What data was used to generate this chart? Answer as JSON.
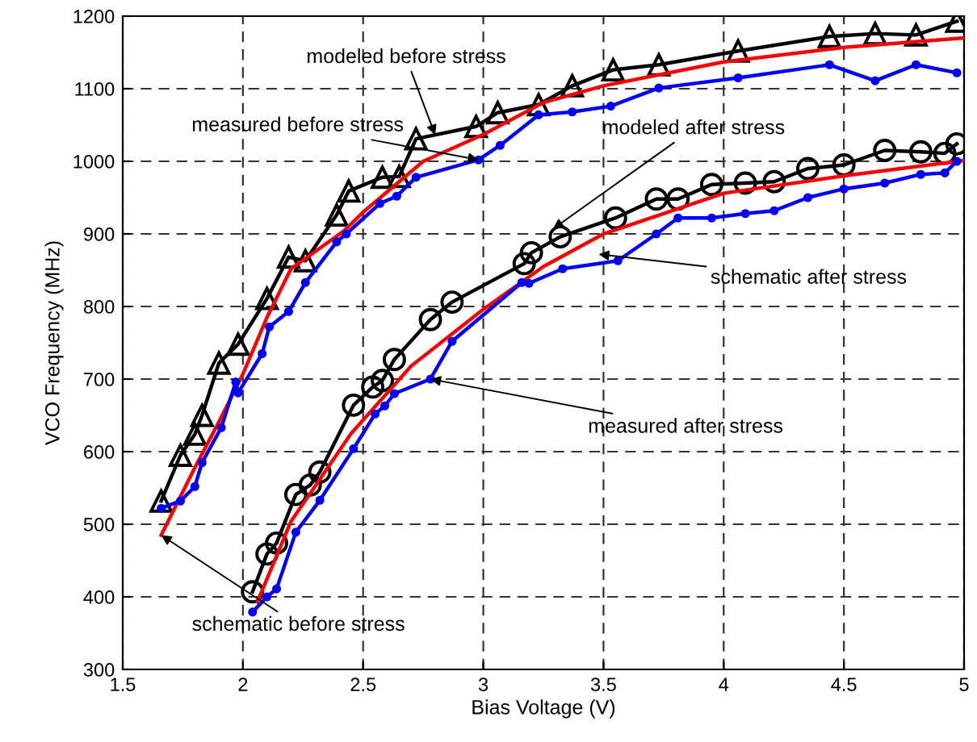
{
  "chart_data": {
    "type": "line",
    "xlabel": "Bias Voltage (V)",
    "ylabel": "VCO Frequency (MHz)",
    "xlim": [
      1.5,
      5
    ],
    "xticks": [
      1.5,
      2,
      2.5,
      3,
      3.5,
      4,
      4.5,
      5
    ],
    "ylim": [
      300,
      1200
    ],
    "yticks": [
      300,
      400,
      500,
      600,
      700,
      800,
      900,
      1000,
      1100,
      1200
    ],
    "grid": true,
    "series": [
      {
        "color": "#000000",
        "marker": "triangle",
        "x": [
          1.66,
          1.74,
          1.8,
          1.83,
          1.9,
          1.98,
          2.1,
          2.19,
          2.26,
          2.39,
          2.44,
          2.58,
          2.65,
          2.72,
          2.97,
          3.06,
          3.23,
          3.37,
          3.54,
          3.73,
          4.06,
          4.44,
          4.63,
          4.8,
          4.97
        ],
        "values": [
          532,
          595,
          624,
          650,
          722,
          748,
          811,
          868,
          863,
          926,
          959,
          978,
          979,
          1031,
          1048,
          1067,
          1078,
          1104,
          1126,
          1133,
          1152,
          1172,
          1176,
          1174,
          1193
        ]
      },
      {
        "color": "#ff0000",
        "marker": "none",
        "x": [
          1.66,
          1.8,
          1.9,
          2.0,
          2.1,
          2.2,
          2.42,
          2.5,
          2.75,
          3.0,
          3.25,
          3.5,
          4.0,
          4.5,
          5.0
        ],
        "values": [
          485,
          578,
          641,
          707,
          785,
          852,
          904,
          930,
          1000,
          1037,
          1081,
          1104,
          1137,
          1157,
          1170
        ]
      },
      {
        "color": "#0000ff",
        "marker": "circle",
        "x": [
          1.66,
          1.74,
          1.8,
          1.83,
          1.91,
          1.97,
          1.98,
          2.08,
          2.11,
          2.19,
          2.26,
          2.39,
          2.43,
          2.57,
          2.64,
          2.72,
          2.98,
          3.07,
          3.23,
          3.37,
          3.53,
          3.73,
          4.06,
          4.44,
          4.63,
          4.8,
          4.97
        ],
        "values": [
          522,
          532,
          552,
          585,
          633,
          696,
          681,
          735,
          772,
          793,
          833,
          889,
          900,
          942,
          952,
          978,
          1002,
          1022,
          1064,
          1068,
          1076,
          1101,
          1115,
          1133,
          1111,
          1133,
          1122
        ]
      },
      {
        "color": "#000000",
        "marker": "circle",
        "x": [
          2.04,
          2.1,
          2.14,
          2.22,
          2.28,
          2.32,
          2.46,
          2.54,
          2.58,
          2.63,
          2.78,
          2.87,
          3.17,
          3.2,
          3.32,
          3.55,
          3.72,
          3.81,
          3.95,
          4.09,
          4.21,
          4.35,
          4.5,
          4.67,
          4.82,
          4.92,
          4.97
        ],
        "values": [
          407,
          459,
          474,
          541,
          554,
          572,
          664,
          689,
          698,
          727,
          782,
          806,
          859,
          874,
          896,
          922,
          948,
          948,
          968,
          970,
          972,
          990,
          995,
          1015,
          1013,
          1011,
          1024
        ]
      },
      {
        "color": "#ff0000",
        "marker": "none",
        "x": [
          2.06,
          2.2,
          2.45,
          2.7,
          3.0,
          3.25,
          3.5,
          4.0,
          4.5,
          5.0
        ],
        "values": [
          393,
          504,
          625,
          718,
          796,
          855,
          900,
          956,
          980,
          1001
        ]
      },
      {
        "color": "#0000ff",
        "marker": "circle",
        "x": [
          2.04,
          2.1,
          2.14,
          2.22,
          2.32,
          2.46,
          2.55,
          2.59,
          2.63,
          2.78,
          2.87,
          3.16,
          3.19,
          3.33,
          3.56,
          3.72,
          3.81,
          3.95,
          4.09,
          4.21,
          4.35,
          4.5,
          4.67,
          4.82,
          4.92,
          4.97
        ],
        "values": [
          379,
          400,
          411,
          489,
          533,
          604,
          652,
          663,
          680,
          700,
          752,
          833,
          832,
          852,
          863,
          900,
          922,
          922,
          928,
          932,
          950,
          962,
          970,
          982,
          984,
          1000
        ]
      }
    ],
    "annotations": [
      {
        "text": "modeled before stress",
        "x": 2.8,
        "y": 1036
      },
      {
        "text": "measured before stress",
        "x": 2.98,
        "y": 1002
      },
      {
        "text": "modeled after stress",
        "x": 3.29,
        "y": 907
      },
      {
        "text": "schematic after stress",
        "x": 3.48,
        "y": 872
      },
      {
        "text": "measured after stress",
        "x": 2.78,
        "y": 700
      },
      {
        "text": "schematic before stress",
        "x": 1.66,
        "y": 485
      }
    ]
  }
}
